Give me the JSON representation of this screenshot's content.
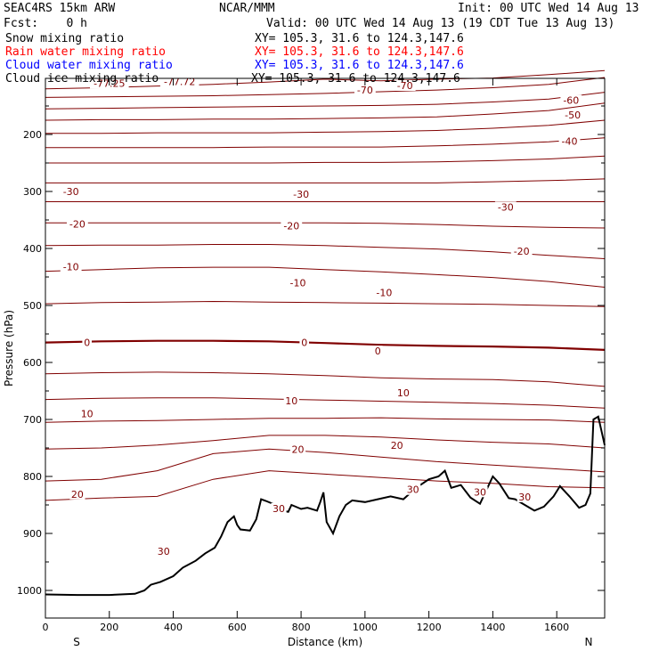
{
  "header": {
    "model": "SEAC4RS 15km ARW",
    "center": "NCAR/MMM",
    "init": "Init: 00 UTC Wed 14 Aug 13",
    "fcst": "Fcst:    0 h",
    "valid": "Valid: 00 UTC Wed 14 Aug 13 (19 CDT Tue 13 Aug 13)"
  },
  "fields": [
    {
      "name": "Snow mixing ratio",
      "xy": "XY= 105.3, 31.6 to 124.3,147.6",
      "color": "#000000"
    },
    {
      "name": "Rain water mixing ratio",
      "xy": "XY= 105.3, 31.6 to 124.3,147.6",
      "color": "#ff0000"
    },
    {
      "name": "Cloud water mixing ratio",
      "xy": "XY= 105.3, 31.6 to 124.3,147.6",
      "color": "#0000ff"
    },
    {
      "name": "Cloud ice mixing ratio",
      "xy": "XY= 105.3, 31.6 to 124.3,147.6",
      "color": "#000000"
    }
  ],
  "chart_data": {
    "type": "line",
    "xlabel": "Distance (km)",
    "ylabel": "Pressure (hPa)",
    "xlim": [
      0,
      1750
    ],
    "ylim": [
      1050,
      100
    ],
    "xticks": [
      0,
      200,
      400,
      600,
      800,
      1000,
      1200,
      1400,
      1600
    ],
    "yticks": [
      200,
      300,
      400,
      500,
      600,
      700,
      800,
      900,
      1000
    ],
    "left_end_label": "S",
    "right_end_label": "N",
    "contour_color": "#800000",
    "terrain_color": "#000000",
    "grid": false,
    "isotherms": [
      {
        "p": [
          120,
          118,
          115,
          112,
          108,
          103,
          106,
          103,
          101,
          95,
          88
        ]
      },
      {
        "p": [
          135,
          134,
          133,
          132,
          130,
          128,
          125,
          122,
          118,
          112,
          100
        ]
      },
      {
        "p": [
          155,
          154,
          153,
          152,
          151,
          150,
          149,
          147,
          143,
          138,
          126
        ]
      },
      {
        "p": [
          175,
          174,
          174,
          173,
          173,
          172,
          171,
          169,
          164,
          158,
          145
        ]
      },
      {
        "p": [
          198,
          198,
          197,
          197,
          197,
          196,
          195,
          193,
          189,
          184,
          175
        ]
      },
      {
        "p": [
          223,
          223,
          223,
          223,
          222,
          222,
          222,
          220,
          217,
          213,
          206
        ]
      },
      {
        "p": [
          250,
          250,
          250,
          250,
          250,
          249,
          249,
          248,
          246,
          243,
          238
        ]
      },
      {
        "p": [
          285,
          285,
          285,
          285,
          285,
          285,
          285,
          285,
          283,
          281,
          278
        ]
      },
      {
        "p": [
          318,
          318,
          318,
          318,
          318,
          318,
          318,
          318,
          318,
          318,
          318
        ]
      },
      {
        "p": [
          355,
          355,
          355,
          355,
          355,
          355,
          356,
          358,
          361,
          363,
          364
        ]
      },
      {
        "p": [
          395,
          394,
          394,
          393,
          393,
          395,
          398,
          401,
          406,
          412,
          418
        ]
      },
      {
        "p": [
          440,
          437,
          434,
          433,
          433,
          437,
          441,
          446,
          451,
          458,
          468
        ]
      },
      {
        "p": [
          497,
          495,
          494,
          493,
          494,
          495,
          496,
          497,
          498,
          500,
          502
        ]
      },
      {
        "p": [
          565,
          563,
          562,
          562,
          563,
          566,
          569,
          571,
          572,
          574,
          578
        ]
      },
      {
        "p": [
          620,
          618,
          617,
          618,
          620,
          623,
          627,
          629,
          630,
          634,
          642
        ]
      },
      {
        "p": [
          665,
          663,
          662,
          662,
          664,
          666,
          668,
          670,
          672,
          675,
          680
        ]
      },
      {
        "p": [
          705,
          703,
          702,
          700,
          698,
          698,
          697,
          699,
          700,
          701,
          705
        ]
      },
      {
        "p": [
          752,
          750,
          745,
          737,
          728,
          728,
          731,
          736,
          740,
          743,
          750
        ]
      },
      {
        "p": [
          808,
          805,
          790,
          760,
          752,
          758,
          766,
          774,
          780,
          786,
          792
        ]
      },
      {
        "p": [
          842,
          838,
          835,
          805,
          790,
          796,
          802,
          808,
          812,
          818,
          820
        ]
      }
    ],
    "labeled_isotherms": [
      {
        "label": "-77.25",
        "x": 200,
        "p": 110
      },
      {
        "label": "-77.72",
        "x": 420,
        "p": 107
      },
      {
        "label": "-70",
        "x": 1000,
        "p": 122
      },
      {
        "label": "-70",
        "x": 1125,
        "p": 114
      },
      {
        "label": "-60",
        "x": 1645,
        "p": 140
      },
      {
        "label": "-50",
        "x": 1650,
        "p": 166
      },
      {
        "label": "-40",
        "x": 1640,
        "p": 212
      },
      {
        "label": "-30",
        "x": 80,
        "p": 300
      },
      {
        "label": "-30",
        "x": 800,
        "p": 305
      },
      {
        "label": "-30",
        "x": 1440,
        "p": 327
      },
      {
        "label": "-20",
        "x": 100,
        "p": 357
      },
      {
        "label": "-20",
        "x": 770,
        "p": 360
      },
      {
        "label": "-20",
        "x": 1490,
        "p": 405
      },
      {
        "label": "-10",
        "x": 80,
        "p": 432
      },
      {
        "label": "-10",
        "x": 790,
        "p": 460
      },
      {
        "label": "-10",
        "x": 1060,
        "p": 477
      },
      {
        "label": "0",
        "x": 130,
        "p": 565
      },
      {
        "label": "0",
        "x": 810,
        "p": 565
      },
      {
        "label": "0",
        "x": 1040,
        "p": 580
      },
      {
        "label": "10",
        "x": 130,
        "p": 690
      },
      {
        "label": "10",
        "x": 770,
        "p": 667
      },
      {
        "label": "10",
        "x": 1120,
        "p": 653
      },
      {
        "label": "20",
        "x": 100,
        "p": 831
      },
      {
        "label": "20",
        "x": 790,
        "p": 752
      },
      {
        "label": "20",
        "x": 1100,
        "p": 745
      },
      {
        "label": "30",
        "x": 370,
        "p": 931
      },
      {
        "label": "30",
        "x": 730,
        "p": 856
      },
      {
        "label": "30",
        "x": 1150,
        "p": 823
      },
      {
        "label": "30",
        "x": 1360,
        "p": 827
      },
      {
        "label": "30",
        "x": 1500,
        "p": 836
      }
    ],
    "terrain": {
      "x": [
        0,
        100,
        200,
        280,
        310,
        330,
        360,
        400,
        430,
        470,
        500,
        530,
        550,
        570,
        590,
        600,
        610,
        640,
        660,
        675,
        690,
        720,
        740,
        760,
        770,
        800,
        820,
        850,
        860,
        870,
        880,
        900,
        920,
        940,
        960,
        1000,
        1040,
        1080,
        1120,
        1160,
        1200,
        1230,
        1250,
        1270,
        1300,
        1330,
        1360,
        1400,
        1420,
        1450,
        1470,
        1500,
        1530,
        1560,
        1590,
        1610,
        1640,
        1670,
        1690,
        1705,
        1715,
        1730,
        1750
      ],
      "p": [
        1007,
        1008,
        1008,
        1006,
        1000,
        990,
        985,
        975,
        960,
        948,
        935,
        925,
        905,
        880,
        870,
        885,
        893,
        895,
        875,
        840,
        843,
        850,
        860,
        862,
        850,
        857,
        855,
        860,
        845,
        828,
        880,
        900,
        870,
        850,
        842,
        845,
        840,
        835,
        840,
        820,
        805,
        800,
        790,
        820,
        815,
        837,
        848,
        800,
        812,
        838,
        840,
        850,
        860,
        853,
        835,
        817,
        835,
        855,
        850,
        830,
        700,
        695,
        745
      ]
    }
  }
}
